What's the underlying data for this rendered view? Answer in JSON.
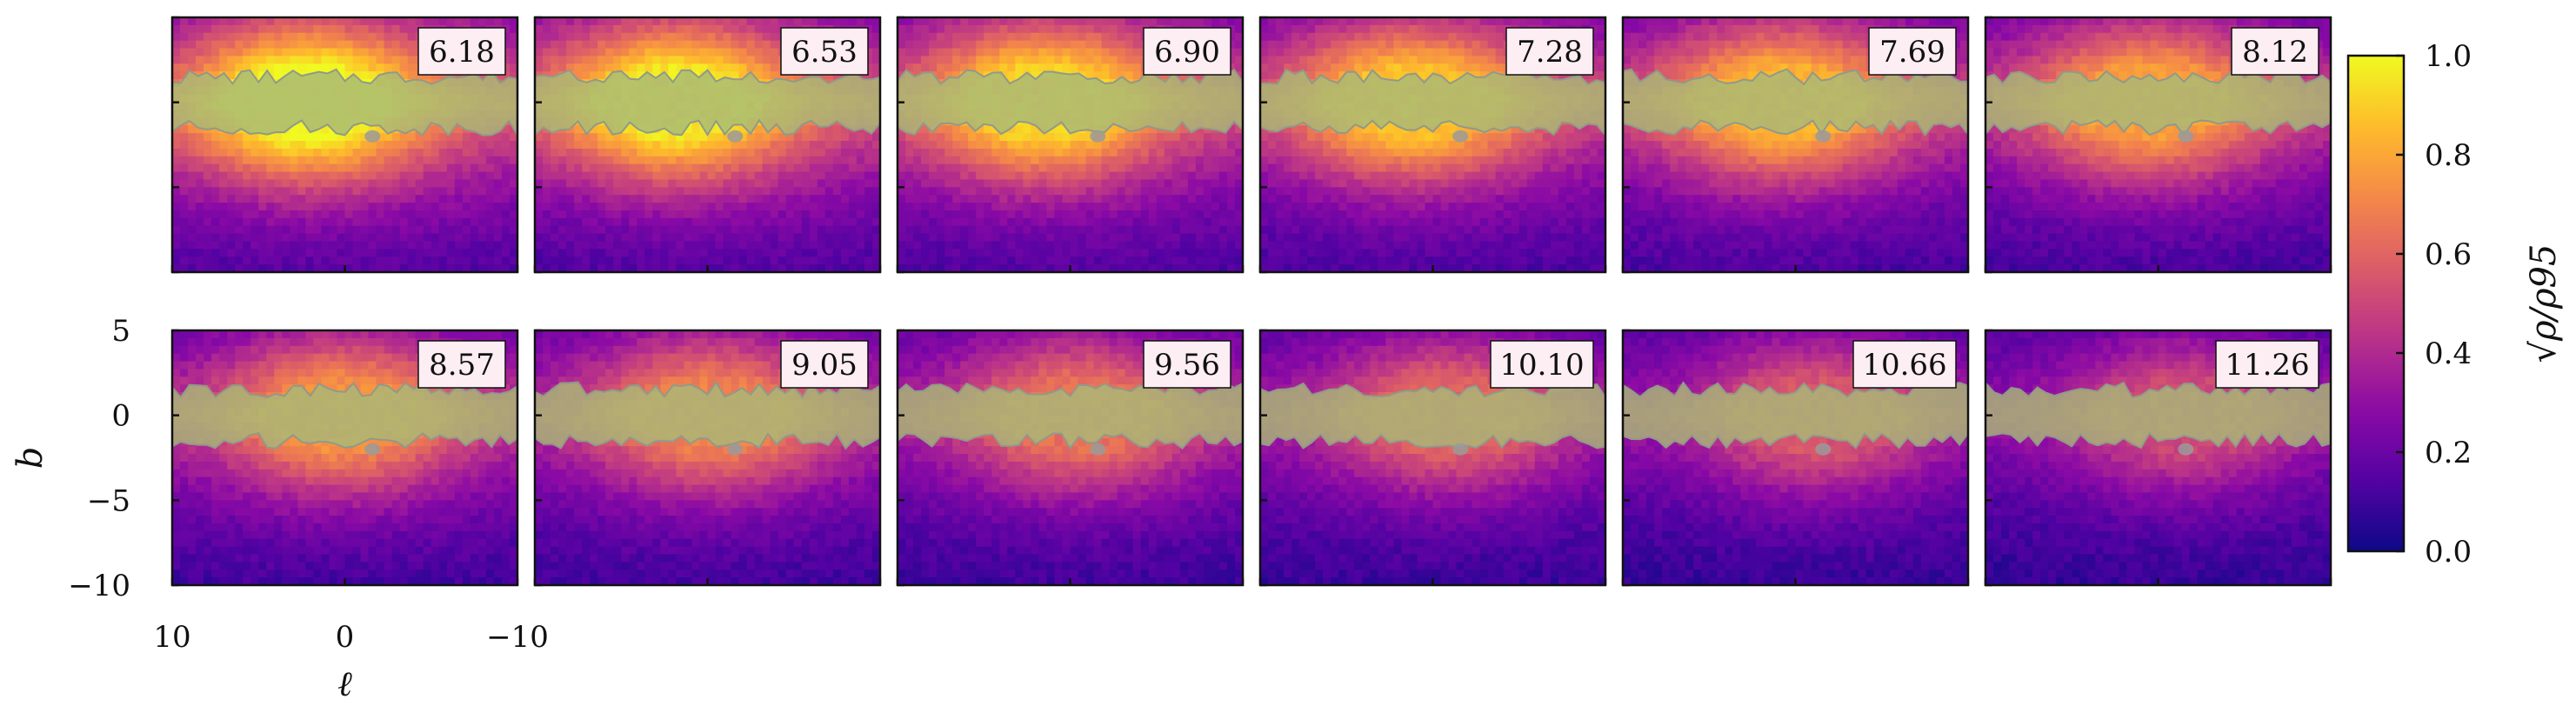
{
  "chart_data": {
    "type": "heatmap",
    "colormap": "plasma",
    "layout": {
      "rows": 2,
      "cols": 6
    },
    "panel_labels": [
      "6.18",
      "6.53",
      "6.90",
      "7.28",
      "7.69",
      "8.12",
      "8.57",
      "9.05",
      "9.56",
      "10.10",
      "10.66",
      "11.26"
    ],
    "xlabel": "ℓ",
    "ylabel": "b",
    "xlim": [
      10,
      -10
    ],
    "ylim": [
      -10,
      5
    ],
    "xticks": [
      10,
      0,
      -10
    ],
    "xtick_labels": [
      "10",
      "0",
      "−10"
    ],
    "yticks": [
      5,
      0,
      -5,
      -10
    ],
    "ytick_labels": [
      "5",
      "0",
      "−5",
      "−10"
    ],
    "colorbar": {
      "label": "√ρ/ρ95",
      "range": [
        0.0,
        1.0
      ],
      "ticks": [
        0.0,
        0.2,
        0.4,
        0.6,
        0.8,
        1.0
      ],
      "tick_labels": [
        "0.0",
        "0.2",
        "0.4",
        "0.6",
        "0.8",
        "1.0"
      ]
    },
    "overlay": {
      "region": "masked plane band",
      "b_range": [
        -1.5,
        1.5
      ],
      "color": "#a8b878"
    },
    "grid": false,
    "legend": "none"
  }
}
